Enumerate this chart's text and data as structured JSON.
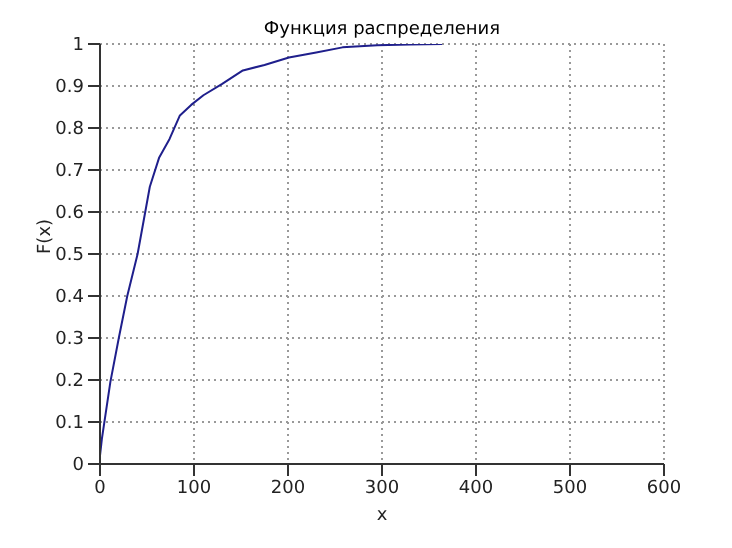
{
  "chart_data": {
    "type": "line",
    "title": "Функция распределения",
    "xlabel": "x",
    "ylabel": "F(x)",
    "series": [
      {
        "color": "#1f1f8c",
        "x": [
          0,
          2,
          11,
          20,
          29,
          40,
          53,
          63,
          74,
          85,
          97,
          110,
          130,
          152,
          175,
          201,
          230,
          258,
          295,
          330,
          364
        ],
        "values": [
          0.02,
          0.06,
          0.195,
          0.3,
          0.4,
          0.5,
          0.66,
          0.73,
          0.774,
          0.83,
          0.855,
          0.878,
          0.905,
          0.937,
          0.95,
          0.968,
          0.98,
          0.992,
          0.997,
          0.999,
          1
        ]
      }
    ],
    "xlim": [
      0,
      600
    ],
    "xticks": [
      0,
      100,
      200,
      300,
      400,
      500,
      600
    ],
    "ylim": [
      0,
      1
    ],
    "yticks": [
      0,
      0.1,
      0.2,
      0.3,
      0.4,
      0.5,
      0.6,
      0.7,
      0.8,
      0.9,
      1
    ],
    "grid": true,
    "legend": false
  }
}
